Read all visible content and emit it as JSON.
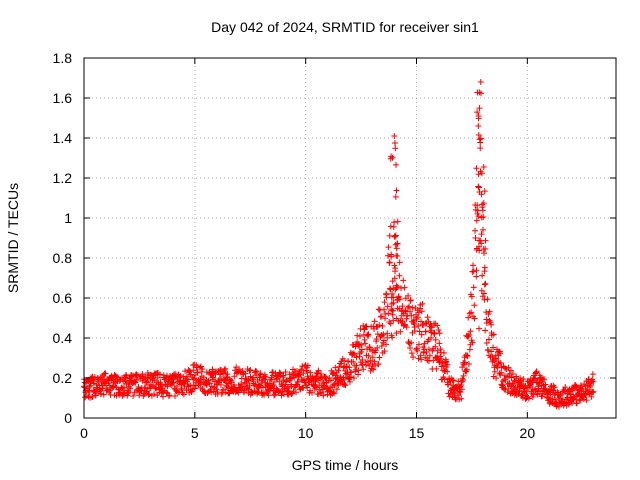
{
  "chart_data": {
    "type": "scatter",
    "title": "Day 042 of 2024, SRMTID for receiver sin1",
    "xlabel": "GPS time / hours",
    "ylabel": "SRMTID / TECUs",
    "xlim": [
      0,
      24
    ],
    "ylim": [
      0,
      1.8
    ],
    "xticks": [
      "0",
      "5",
      "10",
      "15",
      "20"
    ],
    "yticks": [
      "0",
      "0.2",
      "0.4",
      "0.6",
      "0.8",
      "1",
      "1.2",
      "1.4",
      "1.6",
      "1.8"
    ],
    "grid": true,
    "marker": "+",
    "series": [
      {
        "name": "SRMTID",
        "color": "#ff0000",
        "approx_envelope": {
          "x": [
            0,
            1,
            2,
            3,
            4,
            5,
            6,
            7,
            8,
            9,
            10,
            11,
            12,
            12.5,
            13,
            13.5,
            13.8,
            14,
            14.2,
            14.5,
            15,
            15.3,
            15.5,
            16,
            16.5,
            17,
            17.5,
            17.8,
            18,
            18.2,
            18.5,
            19,
            19.5,
            20,
            20.5,
            21,
            21.5,
            22,
            22.5,
            23
          ],
          "y": [
            0.15,
            0.17,
            0.16,
            0.17,
            0.16,
            0.2,
            0.18,
            0.19,
            0.17,
            0.17,
            0.2,
            0.16,
            0.26,
            0.36,
            0.34,
            0.45,
            0.7,
            0.8,
            0.6,
            0.5,
            0.4,
            0.45,
            0.38,
            0.35,
            0.15,
            0.14,
            0.5,
            1.2,
            1.0,
            0.5,
            0.3,
            0.2,
            0.16,
            0.14,
            0.18,
            0.12,
            0.1,
            0.12,
            0.12,
            0.17
          ]
        },
        "peaks": [
          {
            "x": 14.0,
            "y": 1.41
          },
          {
            "x": 17.9,
            "y": 1.68
          }
        ]
      }
    ]
  }
}
